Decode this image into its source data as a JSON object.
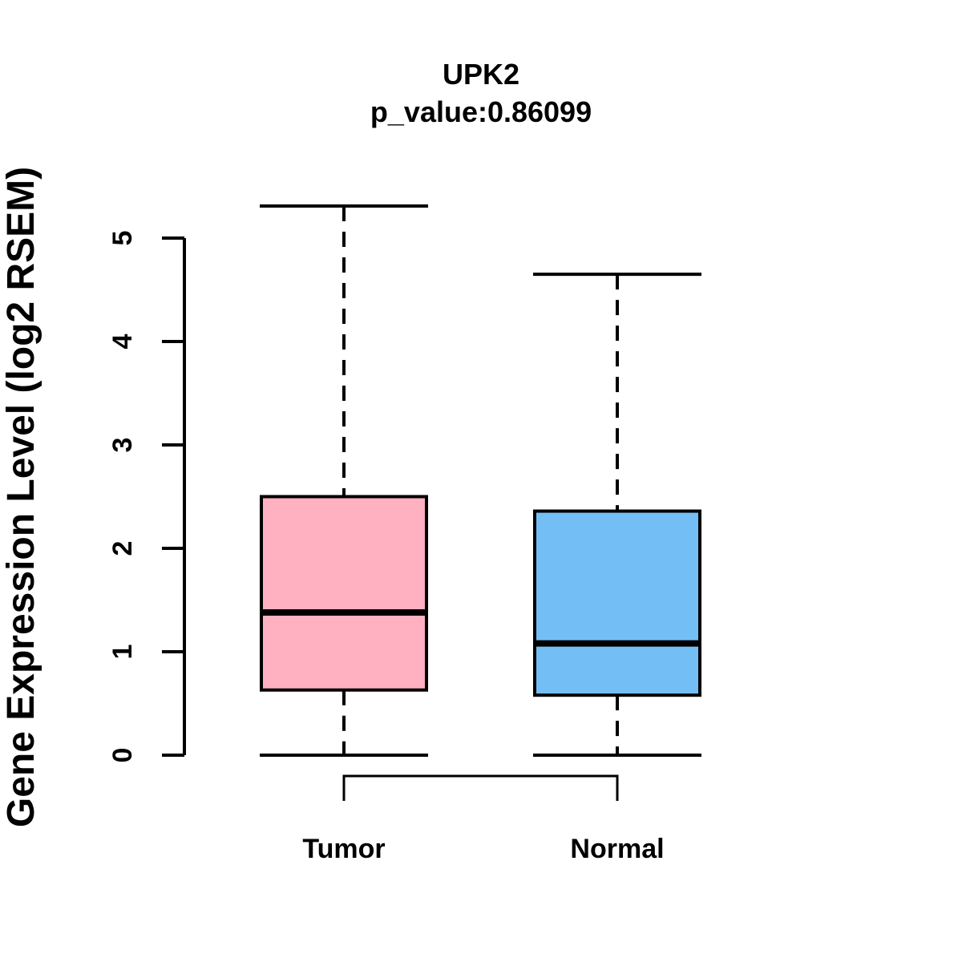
{
  "chart_data": {
    "type": "boxplot",
    "title": "UPK2",
    "subtitle": "p_value:0.86099",
    "ylabel": "Gene Expression Level (log2 RSEM)",
    "xlabel": "",
    "categories": [
      "Tumor",
      "Normal"
    ],
    "series": [
      {
        "name": "Tumor",
        "min": 0,
        "q1": 0.63,
        "median": 1.38,
        "q3": 2.5,
        "max": 5.31,
        "color": "#FFB0C1"
      },
      {
        "name": "Normal",
        "min": 0,
        "q1": 0.58,
        "median": 1.08,
        "q3": 2.36,
        "max": 4.65,
        "color": "#73BFF5"
      }
    ],
    "ylim": [
      0,
      5
    ],
    "yticks": [
      0,
      1,
      2,
      3,
      4,
      5
    ],
    "grid": "off",
    "legend": "none",
    "annotations": {
      "comparison_bracket": [
        "Tumor",
        "Normal"
      ]
    },
    "colors": {
      "tumor_fill": "#FFB0C1",
      "normal_fill": "#73BFF5",
      "stroke": "#000000",
      "background": "#FFFFFF"
    }
  }
}
